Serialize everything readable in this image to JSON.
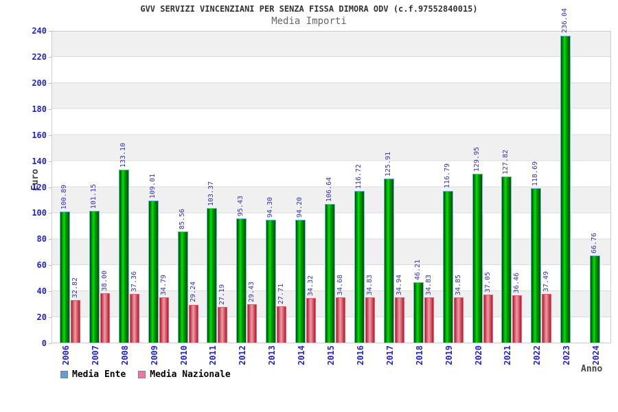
{
  "header": {
    "title": "GVV SERVIZI VINCENZIANI PER SENZA FISSA DIMORA ODV (c.f.97552840015)",
    "subtitle": "Media Importi"
  },
  "chart_data": {
    "type": "bar",
    "title": "GVV SERVIZI VINCENZIANI PER SENZA FISSA DIMORA ODV (c.f.97552840015)",
    "subtitle": "Media Importi",
    "xlabel": "Anno",
    "ylabel": "Euro",
    "ylim": [
      0,
      240
    ],
    "y_tick_step": 20,
    "grid": "horizontal-bands-alternating",
    "legend_position": "bottom-left",
    "categories": [
      "2006",
      "2007",
      "2008",
      "2009",
      "2010",
      "2011",
      "2012",
      "2013",
      "2014",
      "2015",
      "2016",
      "2017",
      "2018",
      "2019",
      "2020",
      "2021",
      "2022",
      "2023",
      "2024"
    ],
    "series": [
      {
        "name": "Media Ente",
        "legend_color": "#5f9ed6",
        "bar_style": "green-gradient",
        "values": [
          100.89,
          101.15,
          133.1,
          109.01,
          85.56,
          103.37,
          95.43,
          94.3,
          94.2,
          106.64,
          116.72,
          125.91,
          46.21,
          116.79,
          129.95,
          127.82,
          118.69,
          236.04,
          66.76
        ]
      },
      {
        "name": "Media Nazionale",
        "legend_color": "#f473aa",
        "bar_style": "red-gradient",
        "values": [
          32.82,
          38.0,
          37.36,
          34.79,
          29.24,
          27.19,
          29.43,
          27.71,
          34.32,
          34.68,
          34.83,
          34.94,
          34.83,
          34.85,
          37.05,
          36.46,
          37.49,
          null,
          null
        ]
      }
    ]
  },
  "colors": {
    "tick_label": "#2323cc",
    "value_label": "#3535b2",
    "title": "#333333",
    "subtitle": "#666666",
    "band_gray": "#f0f0f0",
    "gridline": "#dcdcdc",
    "plot_border": "#cccccc",
    "green_bar_edge": "#6db4ea",
    "red_bar_edge": "#fb5672"
  }
}
